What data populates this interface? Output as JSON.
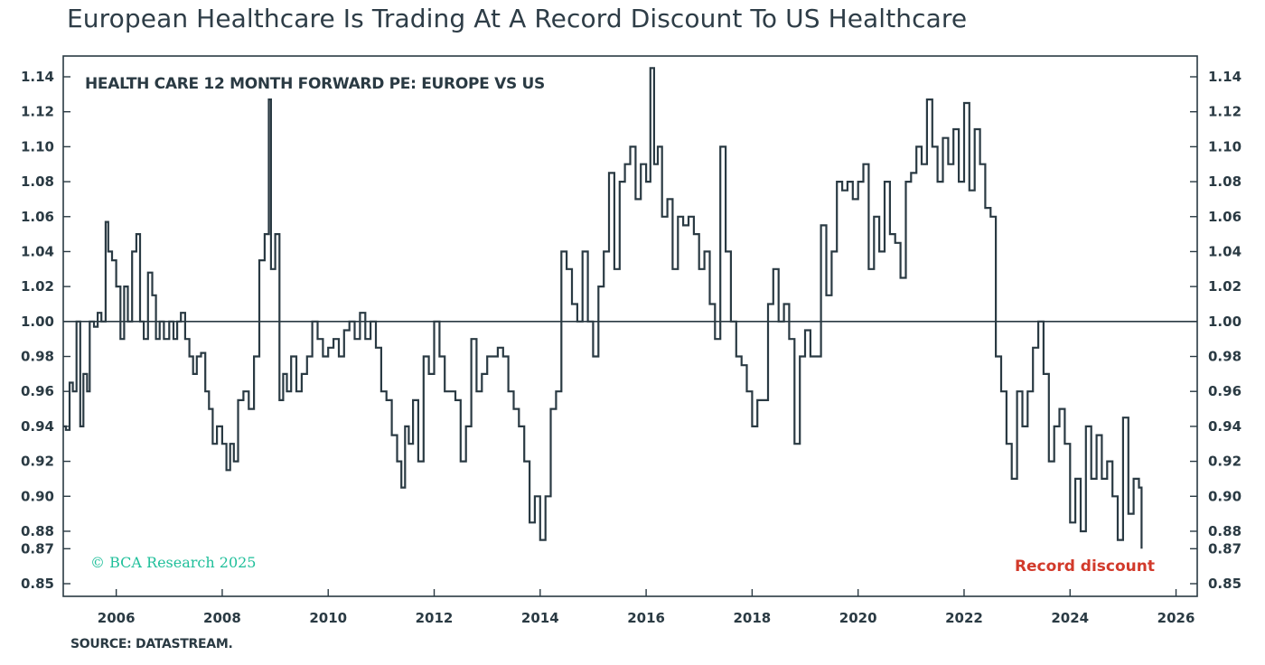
{
  "title": "European Healthcare Is Trading At A Record Discount To US Healthcare",
  "source": "SOURCE: DATASTREAM.",
  "copyright": "© BCA Research 2025",
  "colors": {
    "line": "#2a3a43",
    "axis": "#2a3a43",
    "copyright": "#1fbf9a",
    "annotation": "#d23a2b"
  },
  "chart_data": {
    "type": "line",
    "title": "HEALTH CARE 12 MONTH FORWARD PE: EUROPE VS US",
    "xlabel": "",
    "ylabel": "",
    "xlim": [
      2005.0,
      2026.4
    ],
    "ylim": [
      0.84,
      1.15
    ],
    "x_ticks": [
      2006,
      2008,
      2010,
      2012,
      2014,
      2016,
      2018,
      2020,
      2022,
      2024,
      2026
    ],
    "y_ticks": [
      0.85,
      0.87,
      0.88,
      0.9,
      0.92,
      0.94,
      0.96,
      0.98,
      1.0,
      1.02,
      1.04,
      1.06,
      1.08,
      1.1,
      1.12,
      1.14
    ],
    "y_tick_labels": [
      "0.85",
      "0.87",
      "0.88",
      "0.90",
      "0.92",
      "0.94",
      "0.96",
      "0.98",
      "1.00",
      "1.02",
      "1.04",
      "1.06",
      "1.08",
      "1.10",
      "1.12",
      "1.14"
    ],
    "y_tick_positions": [
      0.85,
      0.87,
      0.88,
      0.9,
      0.92,
      0.94,
      0.96,
      0.98,
      1.0,
      1.02,
      1.04,
      1.06,
      1.08,
      1.1,
      1.12,
      1.14
    ],
    "reference_line": 1.0,
    "grid": false,
    "annotations": [
      {
        "text": "Record discount",
        "x": 2025.1,
        "y": 0.86
      }
    ],
    "series": [
      {
        "points": [
          [
            2005.0,
            0.94
          ],
          [
            2005.05,
            0.938
          ],
          [
            2005.12,
            0.965
          ],
          [
            2005.18,
            0.96
          ],
          [
            2005.25,
            1.0
          ],
          [
            2005.32,
            0.94
          ],
          [
            2005.38,
            0.97
          ],
          [
            2005.45,
            0.96
          ],
          [
            2005.5,
            1.0
          ],
          [
            2005.58,
            0.997
          ],
          [
            2005.65,
            1.005
          ],
          [
            2005.72,
            1.0
          ],
          [
            2005.8,
            1.057
          ],
          [
            2005.85,
            1.04
          ],
          [
            2005.92,
            1.035
          ],
          [
            2006.0,
            1.02
          ],
          [
            2006.08,
            0.99
          ],
          [
            2006.15,
            1.02
          ],
          [
            2006.22,
            1.0
          ],
          [
            2006.3,
            1.04
          ],
          [
            2006.38,
            1.05
          ],
          [
            2006.45,
            1.0
          ],
          [
            2006.52,
            0.99
          ],
          [
            2006.6,
            1.028
          ],
          [
            2006.68,
            1.015
          ],
          [
            2006.75,
            0.99
          ],
          [
            2006.82,
            1.0
          ],
          [
            2006.9,
            0.99
          ],
          [
            2007.0,
            1.0
          ],
          [
            2007.08,
            0.99
          ],
          [
            2007.15,
            1.0
          ],
          [
            2007.22,
            1.005
          ],
          [
            2007.3,
            0.99
          ],
          [
            2007.38,
            0.98
          ],
          [
            2007.45,
            0.97
          ],
          [
            2007.52,
            0.98
          ],
          [
            2007.6,
            0.982
          ],
          [
            2007.68,
            0.96
          ],
          [
            2007.75,
            0.95
          ],
          [
            2007.82,
            0.93
          ],
          [
            2007.9,
            0.94
          ],
          [
            2008.0,
            0.93
          ],
          [
            2008.08,
            0.915
          ],
          [
            2008.15,
            0.93
          ],
          [
            2008.22,
            0.92
          ],
          [
            2008.3,
            0.955
          ],
          [
            2008.4,
            0.96
          ],
          [
            2008.5,
            0.95
          ],
          [
            2008.6,
            0.98
          ],
          [
            2008.7,
            1.035
          ],
          [
            2008.8,
            1.05
          ],
          [
            2008.88,
            1.127
          ],
          [
            2008.92,
            1.03
          ],
          [
            2009.0,
            1.05
          ],
          [
            2009.08,
            0.955
          ],
          [
            2009.15,
            0.97
          ],
          [
            2009.22,
            0.96
          ],
          [
            2009.3,
            0.98
          ],
          [
            2009.4,
            0.96
          ],
          [
            2009.5,
            0.97
          ],
          [
            2009.6,
            0.98
          ],
          [
            2009.7,
            1.0
          ],
          [
            2009.8,
            0.99
          ],
          [
            2009.9,
            0.98
          ],
          [
            2010.0,
            0.985
          ],
          [
            2010.1,
            0.99
          ],
          [
            2010.2,
            0.98
          ],
          [
            2010.3,
            0.995
          ],
          [
            2010.4,
            1.0
          ],
          [
            2010.5,
            0.99
          ],
          [
            2010.6,
            1.005
          ],
          [
            2010.7,
            0.99
          ],
          [
            2010.8,
            1.0
          ],
          [
            2010.9,
            0.985
          ],
          [
            2011.0,
            0.96
          ],
          [
            2011.1,
            0.955
          ],
          [
            2011.2,
            0.935
          ],
          [
            2011.3,
            0.92
          ],
          [
            2011.38,
            0.905
          ],
          [
            2011.45,
            0.94
          ],
          [
            2011.52,
            0.93
          ],
          [
            2011.6,
            0.955
          ],
          [
            2011.7,
            0.92
          ],
          [
            2011.8,
            0.98
          ],
          [
            2011.9,
            0.97
          ],
          [
            2012.0,
            1.0
          ],
          [
            2012.1,
            0.98
          ],
          [
            2012.2,
            0.96
          ],
          [
            2012.3,
            0.96
          ],
          [
            2012.4,
            0.955
          ],
          [
            2012.5,
            0.92
          ],
          [
            2012.6,
            0.94
          ],
          [
            2012.7,
            0.99
          ],
          [
            2012.8,
            0.96
          ],
          [
            2012.9,
            0.97
          ],
          [
            2013.0,
            0.98
          ],
          [
            2013.1,
            0.98
          ],
          [
            2013.2,
            0.985
          ],
          [
            2013.3,
            0.98
          ],
          [
            2013.4,
            0.96
          ],
          [
            2013.5,
            0.95
          ],
          [
            2013.6,
            0.94
          ],
          [
            2013.7,
            0.92
          ],
          [
            2013.8,
            0.885
          ],
          [
            2013.9,
            0.9
          ],
          [
            2014.0,
            0.875
          ],
          [
            2014.1,
            0.9
          ],
          [
            2014.2,
            0.95
          ],
          [
            2014.3,
            0.96
          ],
          [
            2014.4,
            1.04
          ],
          [
            2014.5,
            1.03
          ],
          [
            2014.6,
            1.01
          ],
          [
            2014.7,
            1.0
          ],
          [
            2014.8,
            1.04
          ],
          [
            2014.9,
            1.0
          ],
          [
            2015.0,
            0.98
          ],
          [
            2015.1,
            1.02
          ],
          [
            2015.2,
            1.04
          ],
          [
            2015.3,
            1.085
          ],
          [
            2015.4,
            1.03
          ],
          [
            2015.5,
            1.08
          ],
          [
            2015.6,
            1.09
          ],
          [
            2015.7,
            1.1
          ],
          [
            2015.8,
            1.07
          ],
          [
            2015.9,
            1.09
          ],
          [
            2016.0,
            1.08
          ],
          [
            2016.08,
            1.145
          ],
          [
            2016.15,
            1.09
          ],
          [
            2016.22,
            1.1
          ],
          [
            2016.3,
            1.06
          ],
          [
            2016.4,
            1.07
          ],
          [
            2016.5,
            1.03
          ],
          [
            2016.6,
            1.06
          ],
          [
            2016.7,
            1.055
          ],
          [
            2016.8,
            1.06
          ],
          [
            2016.9,
            1.05
          ],
          [
            2017.0,
            1.03
          ],
          [
            2017.1,
            1.04
          ],
          [
            2017.2,
            1.01
          ],
          [
            2017.3,
            0.99
          ],
          [
            2017.4,
            1.1
          ],
          [
            2017.5,
            1.04
          ],
          [
            2017.6,
            1.0
          ],
          [
            2017.7,
            0.98
          ],
          [
            2017.8,
            0.975
          ],
          [
            2017.9,
            0.96
          ],
          [
            2018.0,
            0.94
          ],
          [
            2018.1,
            0.955
          ],
          [
            2018.2,
            0.955
          ],
          [
            2018.3,
            1.01
          ],
          [
            2018.4,
            1.03
          ],
          [
            2018.5,
            1.0
          ],
          [
            2018.6,
            1.01
          ],
          [
            2018.7,
            0.99
          ],
          [
            2018.8,
            0.93
          ],
          [
            2018.9,
            0.98
          ],
          [
            2019.0,
            0.995
          ],
          [
            2019.1,
            0.98
          ],
          [
            2019.2,
            0.98
          ],
          [
            2019.3,
            1.055
          ],
          [
            2019.4,
            1.015
          ],
          [
            2019.5,
            1.04
          ],
          [
            2019.6,
            1.08
          ],
          [
            2019.7,
            1.075
          ],
          [
            2019.8,
            1.08
          ],
          [
            2019.9,
            1.07
          ],
          [
            2020.0,
            1.08
          ],
          [
            2020.1,
            1.09
          ],
          [
            2020.2,
            1.03
          ],
          [
            2020.3,
            1.06
          ],
          [
            2020.4,
            1.04
          ],
          [
            2020.5,
            1.08
          ],
          [
            2020.6,
            1.05
          ],
          [
            2020.7,
            1.045
          ],
          [
            2020.8,
            1.025
          ],
          [
            2020.9,
            1.08
          ],
          [
            2021.0,
            1.085
          ],
          [
            2021.1,
            1.1
          ],
          [
            2021.2,
            1.09
          ],
          [
            2021.3,
            1.127
          ],
          [
            2021.4,
            1.1
          ],
          [
            2021.5,
            1.08
          ],
          [
            2021.6,
            1.105
          ],
          [
            2021.7,
            1.09
          ],
          [
            2021.8,
            1.11
          ],
          [
            2021.9,
            1.08
          ],
          [
            2022.0,
            1.125
          ],
          [
            2022.1,
            1.075
          ],
          [
            2022.2,
            1.11
          ],
          [
            2022.3,
            1.09
          ],
          [
            2022.4,
            1.065
          ],
          [
            2022.5,
            1.06
          ],
          [
            2022.6,
            0.98
          ],
          [
            2022.7,
            0.96
          ],
          [
            2022.8,
            0.93
          ],
          [
            2022.9,
            0.91
          ],
          [
            2023.0,
            0.96
          ],
          [
            2023.1,
            0.94
          ],
          [
            2023.2,
            0.96
          ],
          [
            2023.3,
            0.985
          ],
          [
            2023.4,
            1.0
          ],
          [
            2023.5,
            0.97
          ],
          [
            2023.6,
            0.92
          ],
          [
            2023.7,
            0.94
          ],
          [
            2023.8,
            0.95
          ],
          [
            2023.9,
            0.93
          ],
          [
            2024.0,
            0.885
          ],
          [
            2024.1,
            0.91
          ],
          [
            2024.2,
            0.88
          ],
          [
            2024.3,
            0.94
          ],
          [
            2024.4,
            0.91
          ],
          [
            2024.5,
            0.935
          ],
          [
            2024.6,
            0.91
          ],
          [
            2024.7,
            0.92
          ],
          [
            2024.8,
            0.9
          ],
          [
            2024.9,
            0.875
          ],
          [
            2025.0,
            0.945
          ],
          [
            2025.1,
            0.89
          ],
          [
            2025.2,
            0.91
          ],
          [
            2025.3,
            0.905
          ],
          [
            2025.35,
            0.87
          ]
        ]
      }
    ]
  }
}
